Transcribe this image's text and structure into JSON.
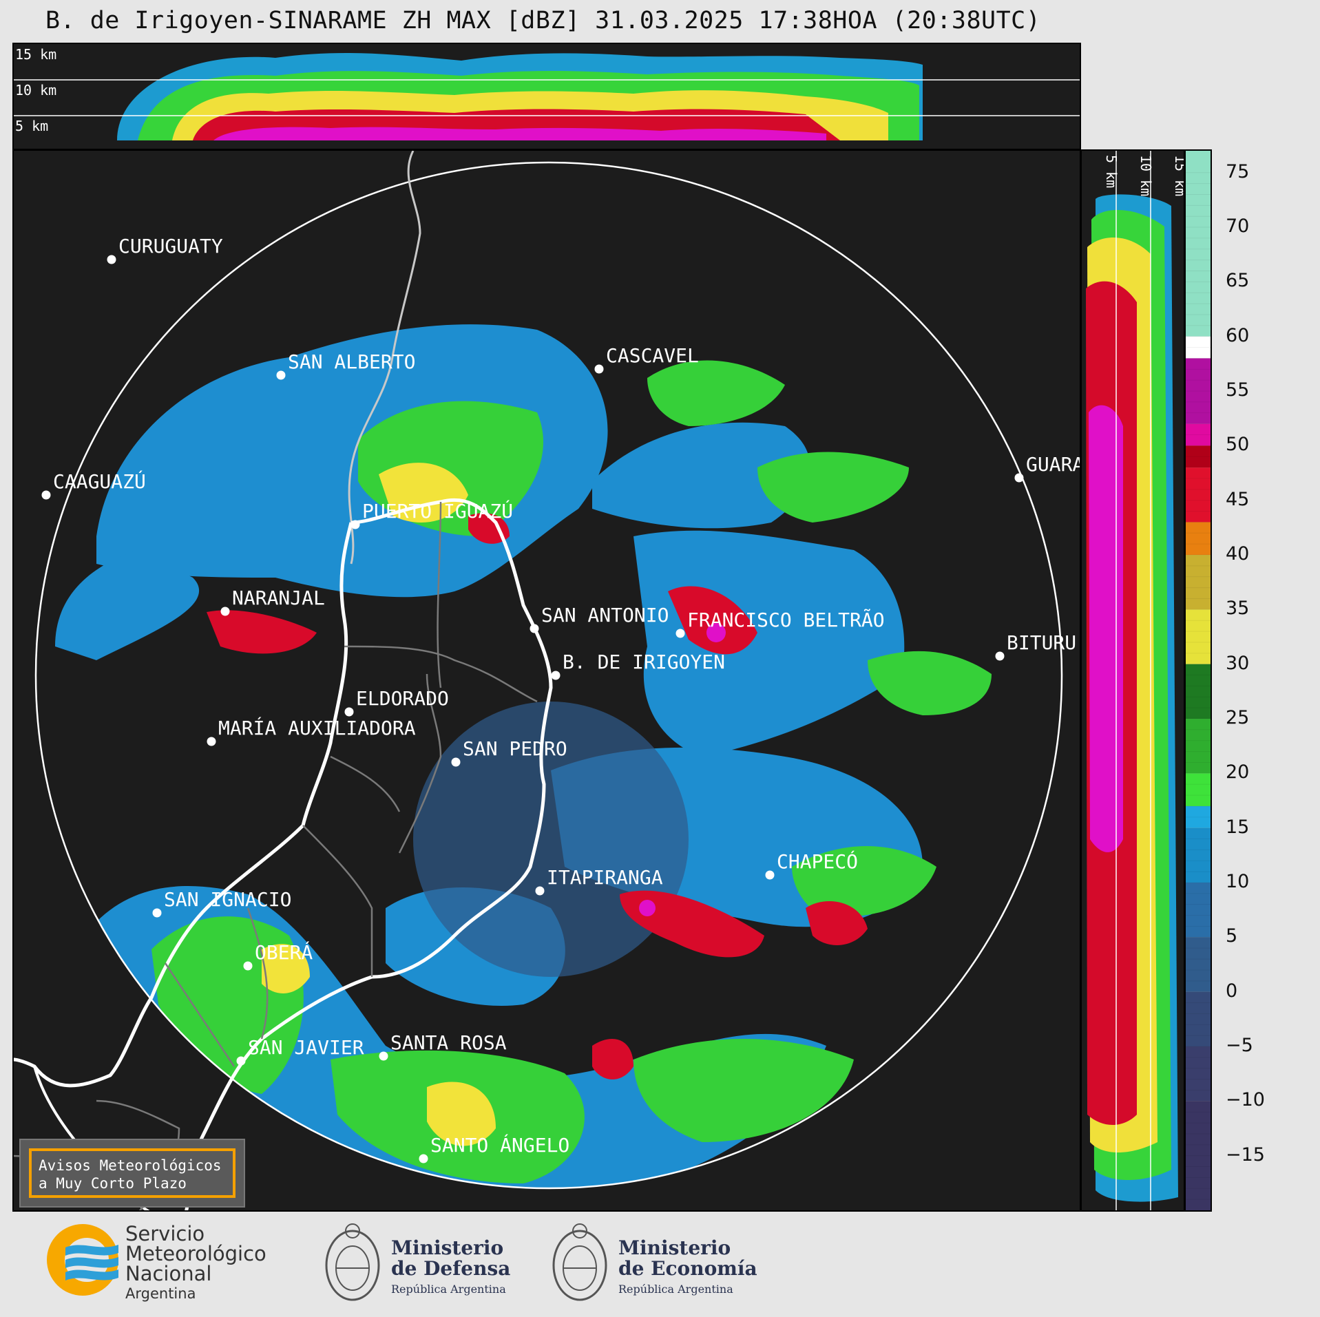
{
  "title": "B. de Irigoyen-SINARAME ZH MAX [dBZ] 31.03.2025 17:38HOA (20:38UTC)",
  "height_labels_top": [
    "15 km",
    "10 km",
    "5 km"
  ],
  "height_labels_side": [
    "5 km",
    "10 km",
    "15 km"
  ],
  "colorbar": {
    "unit": "dBZ",
    "ticks": [
      "75",
      "70",
      "65",
      "60",
      "55",
      "50",
      "45",
      "40",
      "35",
      "30",
      "25",
      "20",
      "15",
      "10",
      "5",
      "0",
      "−5",
      "−10",
      "−15"
    ]
  },
  "cities": [
    {
      "name": "CURUGUATY"
    },
    {
      "name": "SAN ALBERTO"
    },
    {
      "name": "CASCAVEL"
    },
    {
      "name": "CAAGUAZÚ"
    },
    {
      "name": "GUARA"
    },
    {
      "name": "PUERTO IGUAZÚ"
    },
    {
      "name": "NARANJAL"
    },
    {
      "name": "SAN ANTONIO"
    },
    {
      "name": "FRANCISCO BELTRÃO"
    },
    {
      "name": "BITURU"
    },
    {
      "name": "B. DE IRIGOYEN"
    },
    {
      "name": "ELDORADO"
    },
    {
      "name": "MARÍA AUXILIADORA"
    },
    {
      "name": "SAN PEDRO"
    },
    {
      "name": "CHAPECÓ"
    },
    {
      "name": "ITAPIRANGA"
    },
    {
      "name": "SAN IGNACIO"
    },
    {
      "name": "OBERÁ"
    },
    {
      "name": "SAN JAVIER"
    },
    {
      "name": "SANTA ROSA"
    },
    {
      "name": "SANTO ÁNGELO"
    }
  ],
  "avisos": {
    "line1": "Avisos Meteorológicos",
    "line2": "a Muy Corto Plazo"
  },
  "logos": {
    "smn": {
      "line1": "Servicio",
      "line2": "Meteorológico",
      "line3": "Nacional",
      "line4": "Argentina"
    },
    "defensa": {
      "line1": "Ministerio",
      "line2": "de Defensa",
      "line3": "República Argentina"
    },
    "economia": {
      "line1": "Ministerio",
      "line2": "de Economía",
      "line3": "República Argentina"
    }
  }
}
